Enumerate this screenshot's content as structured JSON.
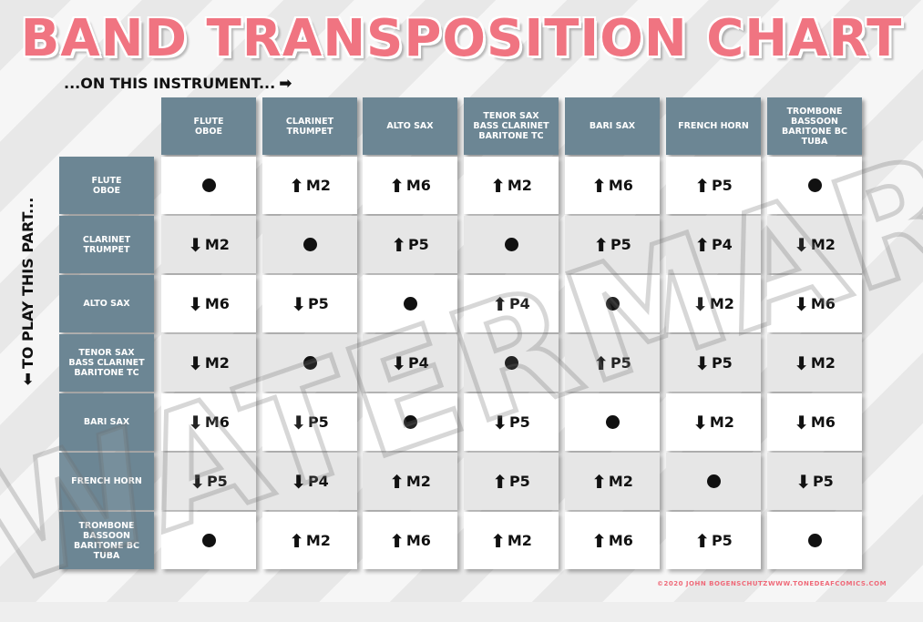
{
  "title": "BAND TRANSPOSITION CHART",
  "column_hint": "...ON THIS INSTRUMENT...",
  "column_hint_arrow": "➡",
  "row_hint": "TO PLAY THIS PART...",
  "row_hint_arrow": "⬅",
  "instruments": [
    "FLUTE\nOBOE",
    "CLARINET\nTRUMPET",
    "ALTO SAX",
    "TENOR SAX\nBASS CLARINET\nBARITONE TC",
    "BARI SAX",
    "FRENCH HORN",
    "TROMBONE\nBASSOON\nBARITONE BC\nTUBA"
  ],
  "grid": [
    [
      "dot",
      "up M2",
      "up M6",
      "up M2",
      "up M6",
      "up P5",
      "dot"
    ],
    [
      "down M2",
      "dot",
      "up P5",
      "dot",
      "up P5",
      "up P4",
      "down M2"
    ],
    [
      "down M6",
      "down P5",
      "dot",
      "up P4",
      "dot",
      "down M2",
      "down M6"
    ],
    [
      "down M2",
      "dot",
      "down P4",
      "dot",
      "up P5",
      "down P5",
      "down M2"
    ],
    [
      "down M6",
      "down P5",
      "dot",
      "down P5",
      "dot",
      "down M2",
      "down M6"
    ],
    [
      "down P5",
      "down P4",
      "up M2",
      "up P5",
      "up M2",
      "dot",
      "down P5"
    ],
    [
      "dot",
      "up M2",
      "up M6",
      "up M2",
      "up M6",
      "up P5",
      "dot"
    ]
  ],
  "watermark": "WATERMARK",
  "credit_left": "©2020 JOHN BOGENSCHUTZ",
  "credit_right": "WWW.TONEDEAFCOMICS.COM",
  "colors": {
    "title": "#f07481",
    "header_bg": "#6c8694",
    "cell_light": "#ffffff",
    "cell_gray": "#e6e6e6",
    "credit": "#ef6a79"
  },
  "icons": {
    "up": "arrow-up-icon",
    "down": "arrow-down-icon",
    "same": "dot-icon"
  }
}
